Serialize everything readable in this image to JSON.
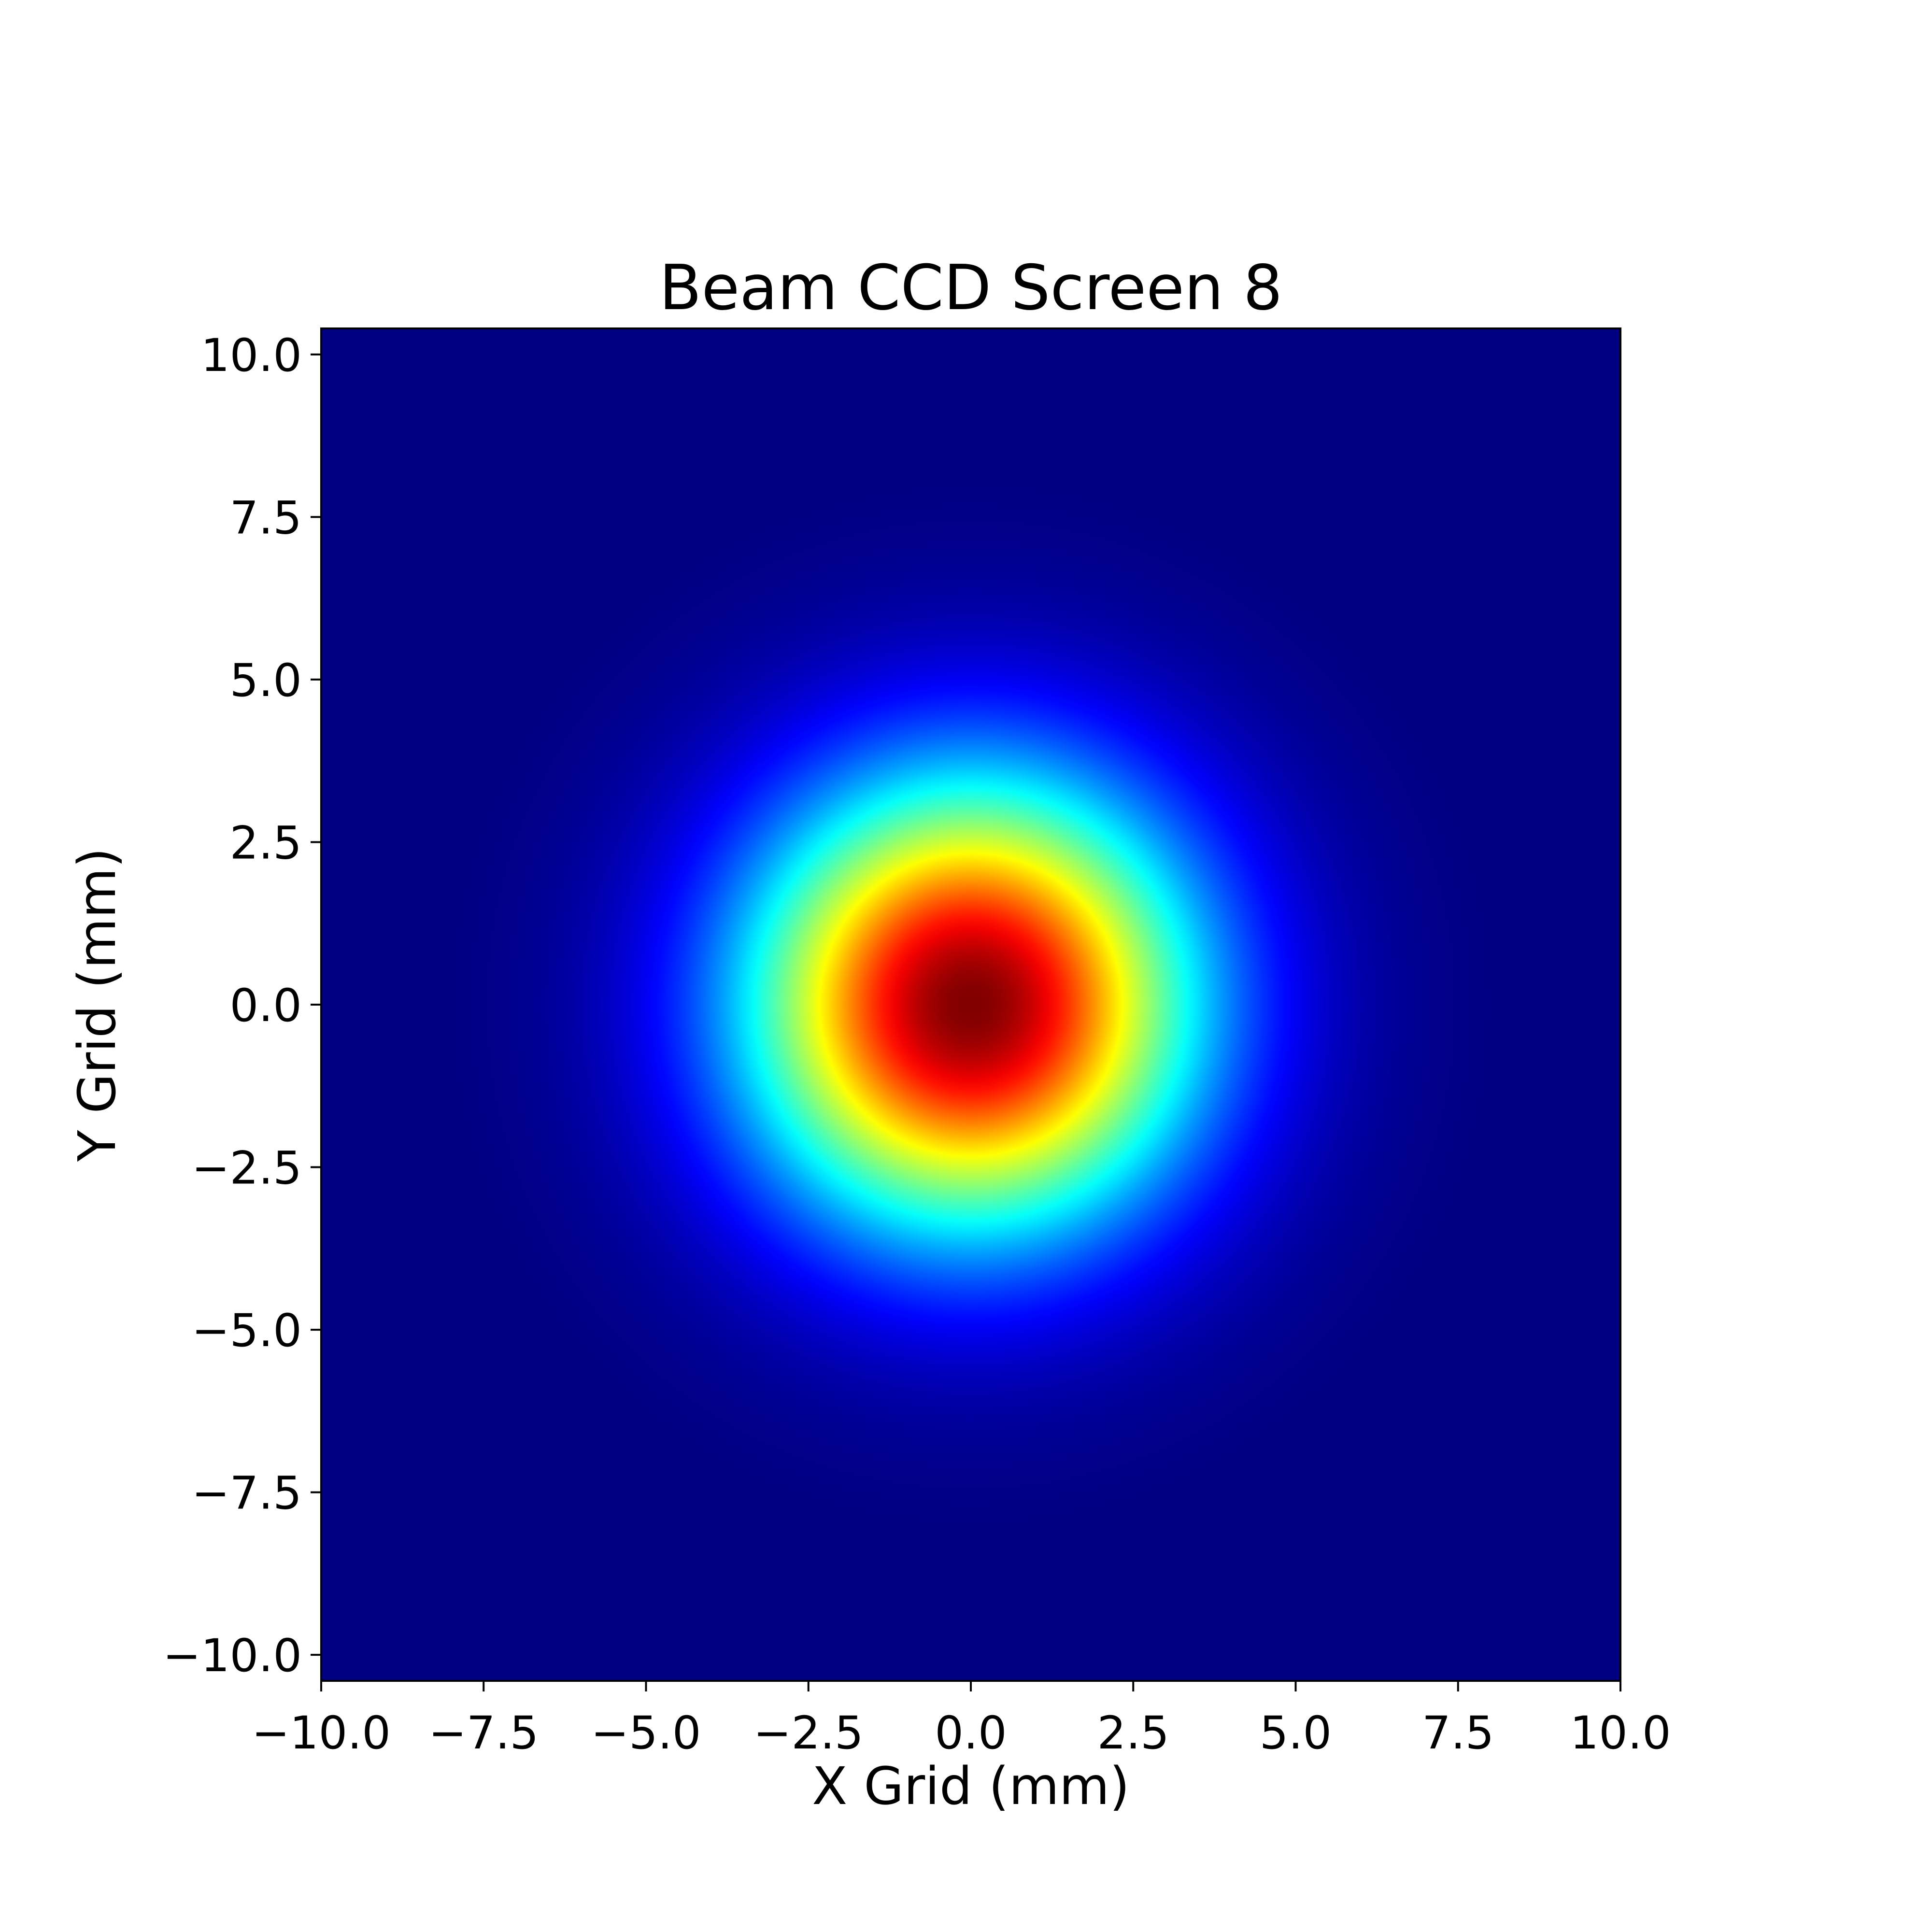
{
  "chart_data": {
    "type": "heatmap",
    "title": "Beam CCD Screen 8",
    "xlabel": "X Grid (mm)",
    "ylabel": "Y Grid (mm)",
    "xlim": [
      -10.0,
      10.0
    ],
    "ylim": [
      -10.4,
      10.4
    ],
    "xticks": [
      -10.0,
      -7.5,
      -5.0,
      -2.5,
      0.0,
      2.5,
      5.0,
      7.5,
      10.0
    ],
    "xtick_labels": [
      "−10.0",
      "−7.5",
      "−5.0",
      "−2.5",
      "0.0",
      "2.5",
      "5.0",
      "7.5",
      "10.0"
    ],
    "yticks": [
      10.0,
      7.5,
      5.0,
      2.5,
      0.0,
      -2.5,
      -5.0,
      -7.5,
      -10.0
    ],
    "ytick_labels": [
      "10.0",
      "7.5",
      "5.0",
      "2.5",
      "0.0",
      "−2.5",
      "−5.0",
      "−7.5",
      "−10.0"
    ],
    "grid": false,
    "colormap": "jet",
    "distribution": {
      "shape": "gaussian",
      "center_x": 0.0,
      "center_y": 0.0,
      "sigma_mm": 2.4
    },
    "colors": {
      "peak": "#800000",
      "background": "#000080"
    }
  }
}
